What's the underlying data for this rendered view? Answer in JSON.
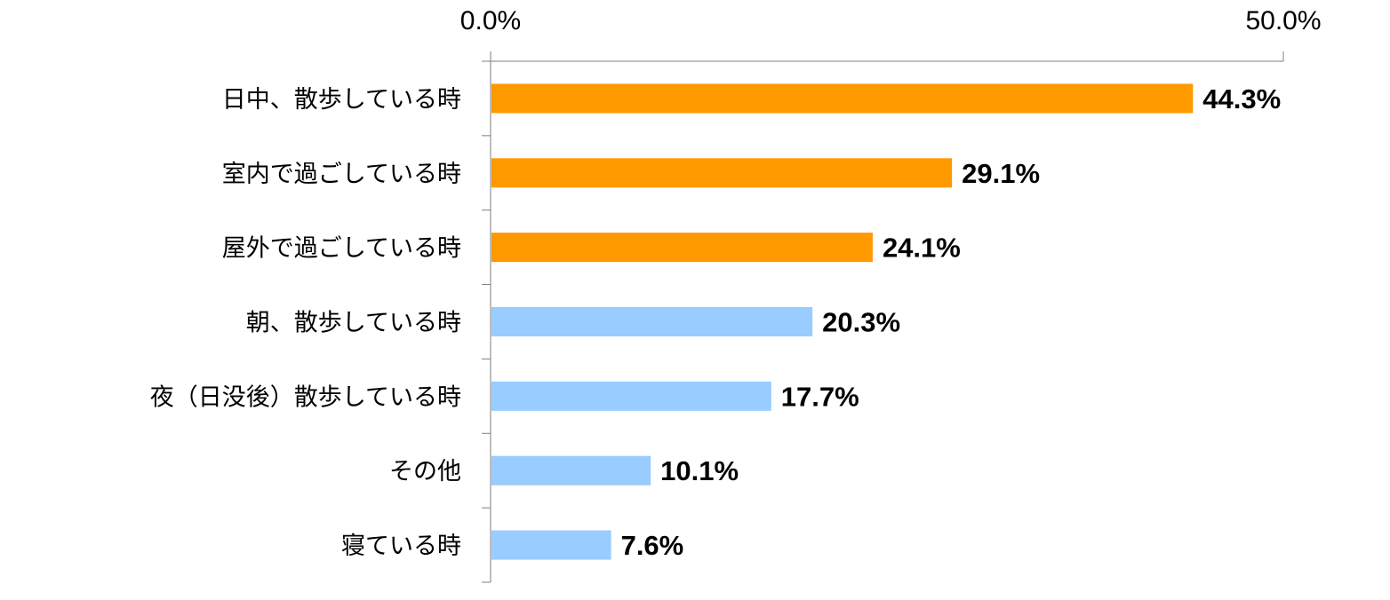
{
  "chart_data": {
    "type": "bar",
    "orientation": "horizontal",
    "title": "",
    "xlabel": "",
    "ylabel": "",
    "xlim": [
      0,
      50
    ],
    "x_ticks": [
      0,
      50
    ],
    "x_tick_labels": [
      "0.0%",
      "50.0%"
    ],
    "x_axis_position": "top",
    "grid": false,
    "legend": "none",
    "categories": [
      "日中、散歩している時",
      "室内で過ごしている時",
      "屋外で過ごしている時",
      "朝、散歩している時",
      "夜（日没後）散歩している時",
      "その他",
      "寝ている時"
    ],
    "values": [
      44.3,
      29.1,
      24.1,
      20.3,
      17.7,
      10.1,
      7.6
    ],
    "value_labels": [
      "44.3%",
      "29.1%",
      "24.1%",
      "20.3%",
      "17.7%",
      "10.1%",
      "7.6%"
    ],
    "bar_colors": [
      "#FF9900",
      "#FF9900",
      "#FF9900",
      "#99CCFF",
      "#99CCFF",
      "#99CCFF",
      "#99CCFF"
    ],
    "axis_color": "#7F7F7F"
  }
}
